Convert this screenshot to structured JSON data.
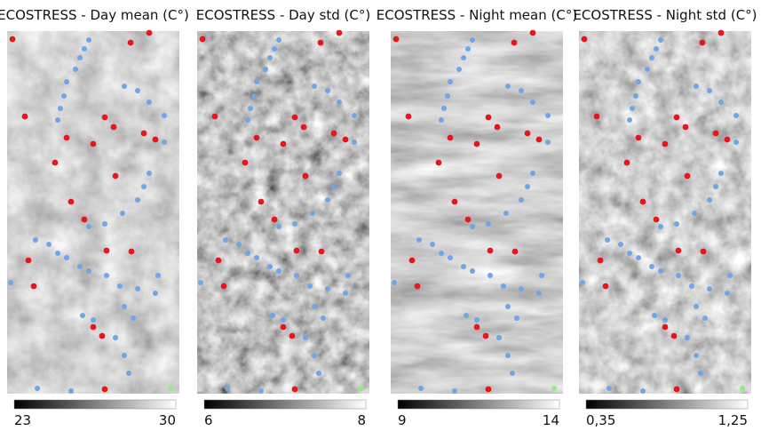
{
  "panels": [
    {
      "title": "ECOSTRESS - Day mean (C°)",
      "colorbar": {
        "min": "23",
        "max": "30"
      }
    },
    {
      "title": "ECOSTRESS - Day std (C°)",
      "colorbar": {
        "min": "6",
        "max": "8"
      }
    },
    {
      "title": "ECOSTRESS - Night mean (C°)",
      "colorbar": {
        "min": "9",
        "max": "14"
      }
    },
    {
      "title": "ECOSTRESS - Night std (C°)",
      "colorbar": {
        "min": "0,35",
        "max": "1,25"
      }
    }
  ]
}
